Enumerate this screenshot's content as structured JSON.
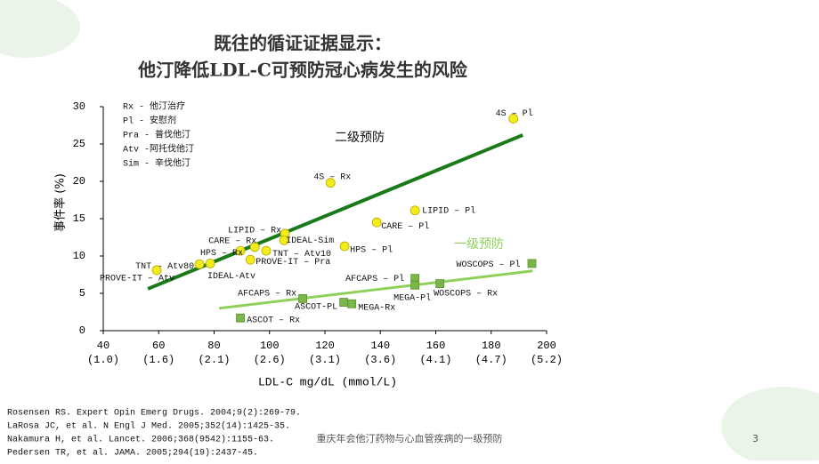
{
  "title": [
    "既往的循证证据显示：",
    "他汀降低LDL-C可预防冠心病发生的风险"
  ],
  "key": [
    "Rx  -  他汀治疗",
    "Pl  -  安慰剂",
    "Pra  -  普伐他汀",
    "Atv  -阿托伐他汀",
    "Sim  -  辛伐他汀"
  ],
  "chart_data": {
    "type": "scatter",
    "x_label": "LDL-C mg/dL (mmol/L)",
    "y_label": "事件率 (%)",
    "xlim": [
      40,
      200
    ],
    "xticks": [
      40,
      60,
      80,
      100,
      120,
      140,
      160,
      180,
      200
    ],
    "xtick_sublabels": [
      "(1.0)",
      "(1.6)",
      "(2.1)",
      "(2.6)",
      "(3.1)",
      "(3.6)",
      "(4.1)",
      "(4.7)",
      "(5.2)"
    ],
    "ylim": [
      0,
      30
    ],
    "yticks": [
      0,
      5,
      10,
      15,
      20,
      25,
      30
    ],
    "series": [
      {
        "name": "二级预防",
        "marker": "circle",
        "color": "#f2ec1c",
        "line_color": "#1a7a1a",
        "labels": [
          "4S – Pl",
          "4S – Rx",
          "LIPID – Pl",
          "CARE – Pl",
          "HPS – Pl",
          "LIPID – Rx",
          "IDEAL-Sim",
          "CARE – Rx",
          "HPS – Rx",
          "TNT – Atv10",
          "PROVE-IT – Pra",
          "TNT – Atv80",
          "IDEAL-Atv",
          "PROVE-IT – Atv"
        ],
        "x": [
          188,
          122,
          152.5,
          138.7,
          127.1,
          105.6,
          105.3,
          94.7,
          89.5,
          98.8,
          93.1,
          78.6,
          74.7,
          59.3
        ],
        "values": [
          28.4,
          19.8,
          16.1,
          14.5,
          11.3,
          13.0,
          12.1,
          11.2,
          10.7,
          10.7,
          9.5,
          9.0,
          8.9,
          8.1
        ],
        "trend": {
          "x": [
            56.1,
            191.4
          ],
          "y": [
            5.6,
            26.2
          ]
        }
      },
      {
        "name": "一级预防",
        "marker": "square",
        "color": "#7ab648",
        "line_color": "#8fd05a",
        "labels": [
          "WOSCOPS – Pl",
          "WOSCOPS – Rx",
          "AFCAPS – Pl",
          "MEGA-Pl",
          "AFCAPS – Rx",
          "ASCOT-PL",
          "MEGA-Rx",
          "ASCOT – Rx"
        ],
        "x": [
          194.7,
          161.5,
          152.5,
          152.5,
          112,
          126.8,
          129.7,
          89.5
        ],
        "values": [
          9.0,
          6.3,
          7.0,
          6.1,
          4.3,
          3.8,
          3.6,
          1.7
        ],
        "trend": {
          "x": [
            81.8,
            195
          ],
          "y": [
            3.0,
            8.0
          ]
        }
      }
    ]
  },
  "references": [
    "Rosensen RS. Expert Opin Emerg Drugs. 2004;9(2):269-79.",
    "LaRosa JC, et al. N Engl J Med. 2005;352(14):1425-35.",
    "Nakamura H, et al. Lancet. 2006;368(9542):1155-63.",
    "Pedersen TR, et al. JAMA. 2005;294(19):2437-45."
  ],
  "footer": "重庆年会他汀药物与心血管疾病的一级预防",
  "page_number": "3"
}
